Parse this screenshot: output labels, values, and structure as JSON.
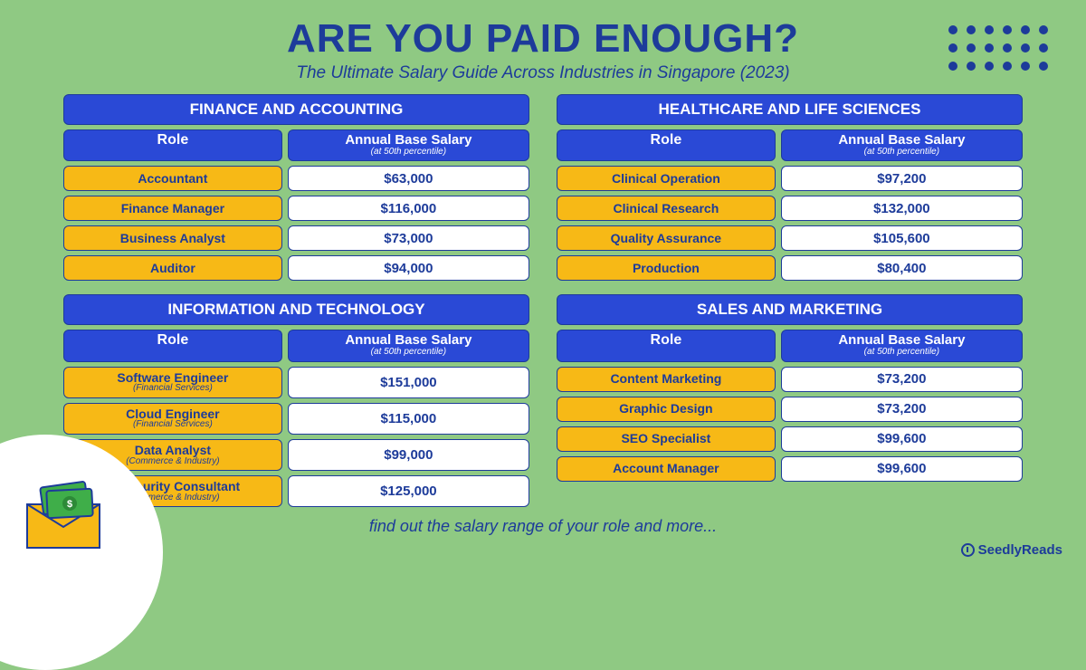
{
  "colors": {
    "background": "#8fc983",
    "primary": "#1d3b9a",
    "header_cell": "#2a49d6",
    "role_cell": "#f7b916",
    "salary_cell": "#ffffff"
  },
  "header": {
    "title": "ARE YOU PAID ENOUGH?",
    "subtitle": "The Ultimate Salary Guide Across Industries in Singapore (2023)"
  },
  "column_labels": {
    "role": "Role",
    "salary": "Annual Base Salary",
    "salary_sub": "(at 50th percentile)"
  },
  "sectors": [
    {
      "name": "FINANCE AND ACCOUNTING",
      "rows": [
        {
          "role": "Accountant",
          "sub": "",
          "salary": "$63,000"
        },
        {
          "role": "Finance Manager",
          "sub": "",
          "salary": "$116,000"
        },
        {
          "role": "Business Analyst",
          "sub": "",
          "salary": "$73,000"
        },
        {
          "role": "Auditor",
          "sub": "",
          "salary": "$94,000"
        }
      ]
    },
    {
      "name": "HEALTHCARE AND LIFE SCIENCES",
      "rows": [
        {
          "role": "Clinical Operation",
          "sub": "",
          "salary": "$97,200"
        },
        {
          "role": "Clinical Research",
          "sub": "",
          "salary": "$132,000"
        },
        {
          "role": "Quality Assurance",
          "sub": "",
          "salary": "$105,600"
        },
        {
          "role": "Production",
          "sub": "",
          "salary": "$80,400"
        }
      ]
    },
    {
      "name": "INFORMATION AND TECHNOLOGY",
      "rows": [
        {
          "role": "Software Engineer",
          "sub": "(Financial Services)",
          "salary": "$151,000"
        },
        {
          "role": "Cloud Engineer",
          "sub": "(Financial Services)",
          "salary": "$115,000"
        },
        {
          "role": "Data Analyst",
          "sub": "(Commerce & Industry)",
          "salary": "$99,000"
        },
        {
          "role": "IT Security Consultant",
          "sub": "(Commerce & Industry)",
          "salary": "$125,000"
        }
      ]
    },
    {
      "name": "SALES AND MARKETING",
      "rows": [
        {
          "role": "Content Marketing",
          "sub": "",
          "salary": "$73,200"
        },
        {
          "role": "Graphic Design",
          "sub": "",
          "salary": "$73,200"
        },
        {
          "role": "SEO Specialist",
          "sub": "",
          "salary": "$99,600"
        },
        {
          "role": "Account Manager",
          "sub": "",
          "salary": "$99,600"
        }
      ]
    }
  ],
  "footer": "find out the salary range of your role and more...",
  "brand": "SeedlyReads"
}
